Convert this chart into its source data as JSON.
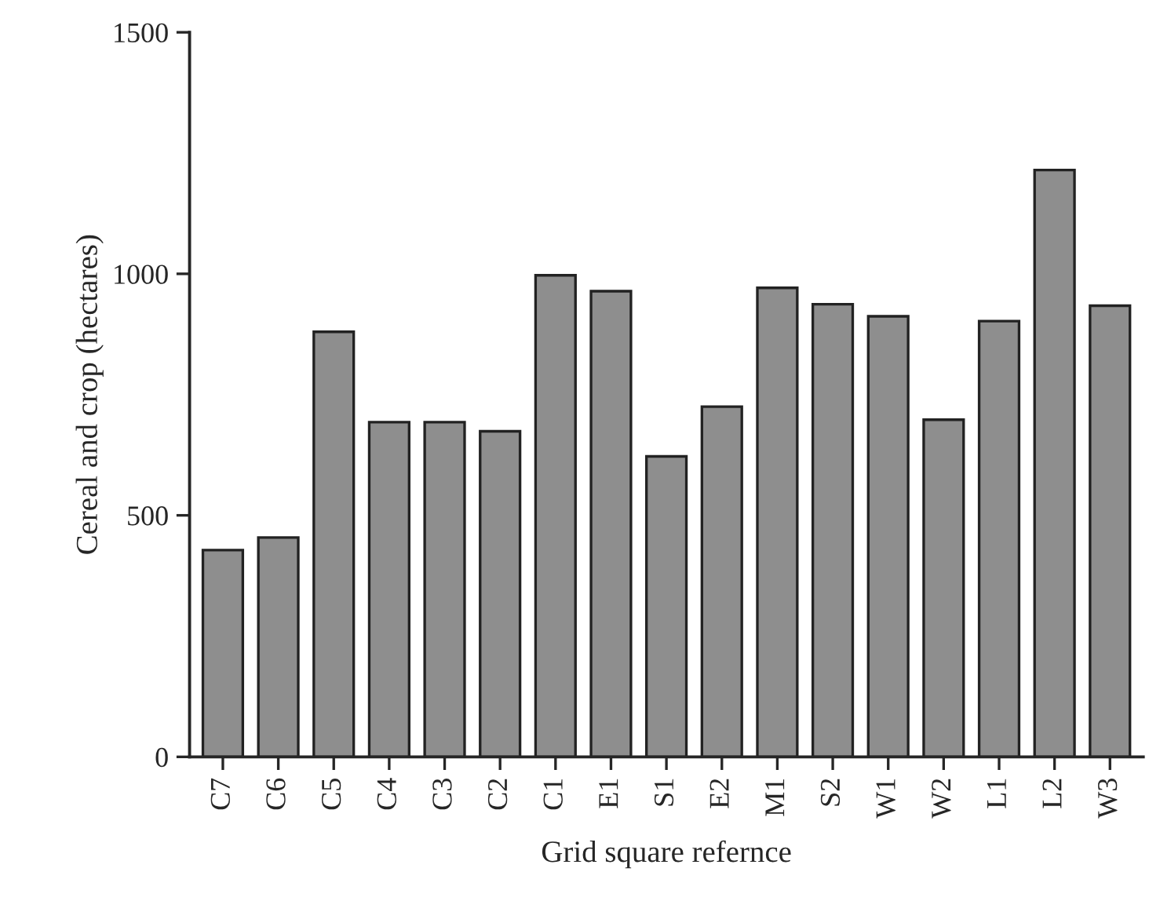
{
  "chart_data": {
    "type": "bar",
    "xlabel": "Grid square refernce",
    "ylabel": "Cereal and crop (hectares)",
    "categories": [
      "C7",
      "C6",
      "C5",
      "C4",
      "C3",
      "C2",
      "C1",
      "E1",
      "S1",
      "E2",
      "M1",
      "S2",
      "W1",
      "W2",
      "L1",
      "L2",
      "W3"
    ],
    "values": [
      428,
      454,
      880,
      693,
      693,
      674,
      997,
      964,
      622,
      725,
      971,
      937,
      912,
      698,
      902,
      1215,
      934
    ],
    "color": "#8e8e8e",
    "ylim": [
      0,
      1500
    ],
    "yticks": [
      0,
      500,
      1000,
      1500
    ],
    "grid": false
  }
}
